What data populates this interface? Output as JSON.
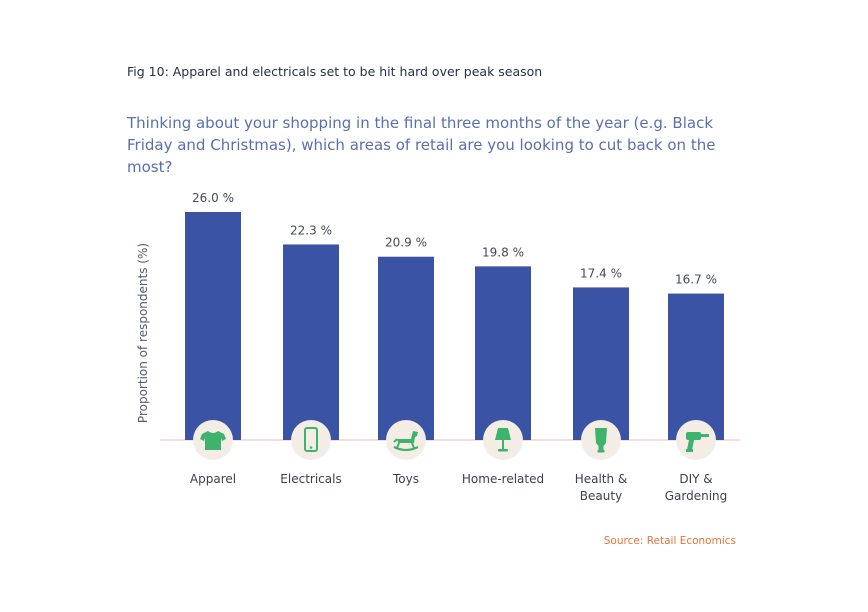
{
  "figure_label": "Fig 10: Apparel and electricals set to be hit hard over peak season",
  "question": "Thinking about your shopping in the final three months of the year (e.g. Black Friday and Christmas), which areas of retail are you looking to cut back on the most?",
  "source": "Source: Retail Economics",
  "colors": {
    "bar": "#3a53a4",
    "icon": "#3db36b",
    "icon_bg": "#f4ede6",
    "baseline": "#f3d3d0"
  },
  "chart_data": {
    "type": "bar",
    "ylabel": "Proportion of respondents (%)",
    "ylim": [
      0,
      26
    ],
    "categories": [
      {
        "label_lines": [
          "Apparel"
        ],
        "icon": "tshirt-icon"
      },
      {
        "label_lines": [
          "Electricals"
        ],
        "icon": "smartphone-icon"
      },
      {
        "label_lines": [
          "Toys"
        ],
        "icon": "rocking-horse-icon"
      },
      {
        "label_lines": [
          "Home-related"
        ],
        "icon": "lamp-icon"
      },
      {
        "label_lines": [
          "Health &",
          "Beauty"
        ],
        "icon": "lotion-tube-icon"
      },
      {
        "label_lines": [
          "DIY &",
          "Gardening"
        ],
        "icon": "power-drill-icon"
      }
    ],
    "values": [
      26.0,
      22.3,
      20.9,
      19.8,
      17.4,
      16.7
    ],
    "value_labels": [
      "26.0 %",
      "22.3 %",
      "20.9 %",
      "19.8 %",
      "17.4 %",
      "16.7 %"
    ]
  }
}
